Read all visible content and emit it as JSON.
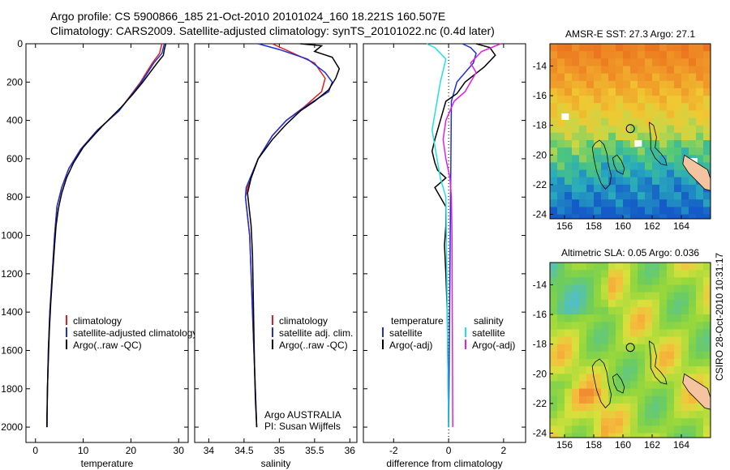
{
  "header": {
    "line1": "Argo profile: CS 5900866_185 21-Oct-2010 20101024_160 18.221S 160.507E",
    "line2": "Climatology: CARS2009. Satellite-adjusted climatology: synTS_20101022.nc (0.4d later)"
  },
  "credit": "CSIRO 28-Oct-2010 10:31:17",
  "colors": {
    "climatology": "#e02020",
    "satellite": "#1f2fd8",
    "argo": "#000000",
    "satellite_salinity": "#22e0e0",
    "argo_salinity_adj": "#e020e0"
  },
  "chart_data": [
    {
      "type": "line",
      "title": "",
      "xlabel": "temperature",
      "ylabel": "",
      "xlim": [
        -2,
        32
      ],
      "ylim": [
        2080,
        0
      ],
      "xticks": [
        0,
        10,
        20,
        30
      ],
      "yticks": [
        0,
        200,
        400,
        600,
        800,
        1000,
        1200,
        1400,
        1600,
        1800,
        2000
      ],
      "legend": [
        "climatology",
        "satellite-adjusted climatology",
        "Argo(..raw -QC)"
      ],
      "series": [
        {
          "name": "climatology",
          "color": "#e02020",
          "points": [
            [
              26.5,
              0
            ],
            [
              26.0,
              50
            ],
            [
              24.5,
              100
            ],
            [
              22.0,
              200
            ],
            [
              17.5,
              350
            ],
            [
              13.0,
              450
            ],
            [
              9.5,
              550
            ],
            [
              7.0,
              650
            ],
            [
              5.5,
              750
            ],
            [
              4.5,
              850
            ],
            [
              4.0,
              1000
            ],
            [
              3.5,
              1200
            ],
            [
              3.0,
              1400
            ],
            [
              2.7,
              1600
            ],
            [
              2.5,
              1800
            ],
            [
              2.4,
              2000
            ]
          ]
        },
        {
          "name": "satellite-adjusted climatology",
          "color": "#1f2fd8",
          "points": [
            [
              27.0,
              0
            ],
            [
              26.5,
              50
            ],
            [
              24.8,
              100
            ],
            [
              22.2,
              200
            ],
            [
              17.5,
              350
            ],
            [
              13.0,
              450
            ],
            [
              9.5,
              550
            ],
            [
              7.0,
              650
            ],
            [
              5.5,
              750
            ],
            [
              4.5,
              850
            ],
            [
              4.0,
              1000
            ],
            [
              3.5,
              1200
            ],
            [
              3.0,
              1400
            ],
            [
              2.7,
              1600
            ],
            [
              2.5,
              1800
            ],
            [
              2.4,
              2000
            ]
          ]
        },
        {
          "name": "Argo(..raw -QC)",
          "color": "#000000",
          "points": [
            [
              27.3,
              0
            ],
            [
              27.0,
              30
            ],
            [
              26.8,
              60
            ],
            [
              25.5,
              100
            ],
            [
              24.0,
              150
            ],
            [
              22.5,
              200
            ],
            [
              20.5,
              260
            ],
            [
              18.0,
              330
            ],
            [
              14.0,
              430
            ],
            [
              12.5,
              470
            ],
            [
              10.0,
              540
            ],
            [
              8.0,
              620
            ],
            [
              6.5,
              700
            ],
            [
              5.5,
              780
            ],
            [
              4.8,
              860
            ],
            [
              4.3,
              950
            ],
            [
              4.0,
              1050
            ],
            [
              3.6,
              1200
            ],
            [
              3.2,
              1350
            ],
            [
              2.9,
              1500
            ],
            [
              2.7,
              1650
            ],
            [
              2.5,
              1800
            ],
            [
              2.4,
              1950
            ],
            [
              2.4,
              2000
            ]
          ]
        }
      ]
    },
    {
      "type": "line",
      "title": "",
      "xlabel": "salinity",
      "ylabel": "",
      "xlim": [
        33.8,
        36.1
      ],
      "ylim": [
        2080,
        0
      ],
      "xticks": [
        34,
        34.5,
        35,
        35.5,
        36
      ],
      "yticks": [
        0,
        200,
        400,
        600,
        800,
        1000,
        1200,
        1400,
        1600,
        1800,
        2000
      ],
      "legend": [
        "climatology",
        "satellite adj. clim.",
        "Argo(..raw -QC)"
      ],
      "annotation": [
        "Argo AUSTRALIA",
        "PI: Susan Wijffels"
      ],
      "series": [
        {
          "name": "climatology",
          "color": "#e02020",
          "points": [
            [
              34.9,
              0
            ],
            [
              35.2,
              50
            ],
            [
              35.5,
              100
            ],
            [
              35.65,
              180
            ],
            [
              35.6,
              250
            ],
            [
              35.35,
              330
            ],
            [
              35.1,
              400
            ],
            [
              34.9,
              480
            ],
            [
              34.7,
              600
            ],
            [
              34.55,
              750
            ],
            [
              34.52,
              800
            ],
            [
              34.55,
              900
            ],
            [
              34.58,
              1000
            ],
            [
              34.6,
              1200
            ],
            [
              34.62,
              1400
            ],
            [
              34.64,
              1600
            ],
            [
              34.66,
              1800
            ],
            [
              34.68,
              2000
            ]
          ]
        },
        {
          "name": "satellite adj. clim.",
          "color": "#1f2fd8",
          "points": [
            [
              34.7,
              0
            ],
            [
              35.0,
              30
            ],
            [
              35.4,
              80
            ],
            [
              35.65,
              150
            ],
            [
              35.75,
              200
            ],
            [
              35.7,
              250
            ],
            [
              35.4,
              320
            ],
            [
              35.1,
              400
            ],
            [
              34.9,
              480
            ],
            [
              34.7,
              600
            ],
            [
              34.53,
              750
            ],
            [
              34.52,
              800
            ],
            [
              34.55,
              900
            ],
            [
              34.58,
              1000
            ],
            [
              34.6,
              1200
            ],
            [
              34.62,
              1400
            ],
            [
              34.64,
              1600
            ],
            [
              34.66,
              1800
            ],
            [
              34.68,
              2000
            ]
          ]
        },
        {
          "name": "Argo(..raw -QC)",
          "color": "#000000",
          "points": [
            [
              35.3,
              0
            ],
            [
              35.6,
              10
            ],
            [
              35.5,
              40
            ],
            [
              35.75,
              70
            ],
            [
              35.85,
              130
            ],
            [
              35.8,
              180
            ],
            [
              35.7,
              240
            ],
            [
              35.5,
              300
            ],
            [
              35.3,
              350
            ],
            [
              35.1,
              420
            ],
            [
              34.9,
              500
            ],
            [
              34.7,
              600
            ],
            [
              34.6,
              700
            ],
            [
              34.55,
              780
            ],
            [
              34.57,
              850
            ],
            [
              34.6,
              950
            ],
            [
              34.62,
              1100
            ],
            [
              34.63,
              1300
            ],
            [
              34.64,
              1500
            ],
            [
              34.65,
              1700
            ],
            [
              34.66,
              1850
            ],
            [
              34.68,
              2000
            ]
          ]
        }
      ]
    },
    {
      "type": "line",
      "title": "",
      "xlabel": "difference from climatology",
      "ylabel": "",
      "xlim": [
        -3.1,
        2.8
      ],
      "ylim": [
        2080,
        0
      ],
      "xticks": [
        -2,
        0,
        2
      ],
      "yticks": [
        0,
        200,
        400,
        600,
        800,
        1000,
        1200,
        1400,
        1600,
        1800,
        2000
      ],
      "legend_temperature": [
        "temperature",
        "satellite",
        "Argo(-adj)"
      ],
      "legend_salinity": [
        "salinity",
        "satellite",
        "Argo(-adj)"
      ],
      "series": [
        {
          "name": "temperature satellite",
          "color": "#1f2fd8",
          "points": [
            [
              0.5,
              0
            ],
            [
              0.8,
              20
            ],
            [
              1.0,
              50
            ],
            [
              0.9,
              100
            ],
            [
              0.6,
              150
            ],
            [
              0.3,
              200
            ],
            [
              0.1,
              300
            ],
            [
              0,
              2000
            ]
          ]
        },
        {
          "name": "temperature Argo(-adj)",
          "color": "#000000",
          "points": [
            [
              1.0,
              0
            ],
            [
              1.5,
              20
            ],
            [
              1.7,
              60
            ],
            [
              1.3,
              120
            ],
            [
              0.6,
              200
            ],
            [
              0.3,
              260
            ],
            [
              -0.1,
              300
            ],
            [
              -0.3,
              400
            ],
            [
              -0.5,
              500
            ],
            [
              -0.6,
              560
            ],
            [
              -0.5,
              620
            ],
            [
              -0.4,
              660
            ],
            [
              -0.1,
              700
            ],
            [
              -0.5,
              750
            ],
            [
              -0.3,
              800
            ],
            [
              -0.1,
              850
            ],
            [
              -0.1,
              950
            ],
            [
              -0.15,
              1050
            ],
            [
              -0.1,
              1200
            ],
            [
              -0.05,
              1400
            ],
            [
              0,
              2000
            ]
          ]
        },
        {
          "name": "salinity satellite",
          "color": "#22e0e0",
          "points": [
            [
              -0.8,
              0
            ],
            [
              -0.5,
              20
            ],
            [
              -0.1,
              80
            ],
            [
              -0.3,
              200
            ],
            [
              -0.6,
              450
            ],
            [
              -0.3,
              700
            ],
            [
              -0.1,
              800
            ],
            [
              0,
              2000
            ]
          ]
        },
        {
          "name": "salinity Argo(-adj)",
          "color": "#e020e0",
          "points": [
            [
              1.9,
              0
            ],
            [
              1.2,
              40
            ],
            [
              0.8,
              100
            ],
            [
              1.0,
              150
            ],
            [
              0.6,
              250
            ],
            [
              0.2,
              300
            ],
            [
              -0.1,
              400
            ],
            [
              -0.2,
              500
            ],
            [
              -0.1,
              600
            ],
            [
              0.05,
              700
            ],
            [
              0.1,
              800
            ],
            [
              0.12,
              1000
            ],
            [
              0.15,
              2000
            ]
          ]
        }
      ]
    },
    {
      "type": "heatmap",
      "title": "AMSR-E SST: 27.3 Argo: 27.1",
      "xlabel": "",
      "ylabel": "",
      "xlim": [
        155,
        166
      ],
      "ylim": [
        -24.3,
        -12.5
      ],
      "xticks": [
        156,
        158,
        160,
        162,
        164
      ],
      "yticks": [
        -14,
        -16,
        -18,
        -20,
        -22,
        -24
      ],
      "marker": {
        "lon": 160.507,
        "lat": -18.221
      }
    },
    {
      "type": "heatmap",
      "title": "Altimetric SLA: 0.05 Argo: 0.036",
      "xlabel": "",
      "ylabel": "",
      "xlim": [
        155,
        166
      ],
      "ylim": [
        -24.3,
        -12.5
      ],
      "xticks": [
        156,
        158,
        160,
        162,
        164
      ],
      "yticks": [
        -14,
        -16,
        -18,
        -20,
        -22,
        -24
      ],
      "marker": {
        "lon": 160.507,
        "lat": -18.221
      }
    }
  ]
}
